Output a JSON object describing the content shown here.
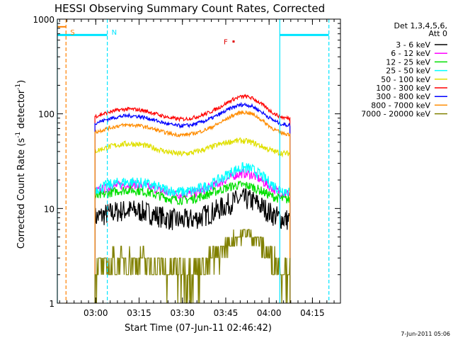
{
  "chart_data": {
    "type": "line",
    "title": "HESSI Observing Summary Count Rates, Corrected",
    "xlabel": "Start Time (07-Jun-11 02:46:42)",
    "ylabel_parts": [
      "Corrected Count Rate (s",
      "-1",
      " detector",
      "-1",
      ")"
    ],
    "yscale": "log",
    "ylim": [
      1,
      1000
    ],
    "xlim_minutes": [
      0,
      98
    ],
    "x_tick_labels": [
      "03:00",
      "03:15",
      "03:30",
      "03:45",
      "04:00",
      "04:15"
    ],
    "x_tick_minutes": [
      13.3,
      28.3,
      43.3,
      58.3,
      73.3,
      88.3
    ],
    "y_tick_labels": [
      "1",
      "10",
      "100",
      "1000"
    ],
    "y_tick_values": [
      1,
      10,
      100,
      1000
    ],
    "legend_header": [
      "Det 1,3,4,5,6,",
      "Att 0"
    ],
    "series": [
      {
        "name": "3 - 6 keV",
        "color": "#000000",
        "base": 8.5,
        "peak": 1.35,
        "noise": 0.12
      },
      {
        "name": "6 - 12 keV",
        "color": "#ff00ff",
        "base": 16,
        "peak": 1.35,
        "noise": 0.05
      },
      {
        "name": "12 - 25 keV",
        "color": "#00e000",
        "base": 14,
        "peak": 1.15,
        "noise": 0.05
      },
      {
        "name": "25 - 50 keV",
        "color": "#00ffff",
        "base": 17,
        "peak": 1.45,
        "noise": 0.06
      },
      {
        "name": "50 - 100 keV",
        "color": "#e0e000",
        "base": 43,
        "peak": 1.1,
        "noise": 0.03
      },
      {
        "name": "100 - 300 keV",
        "color": "#ff0000",
        "base": 100,
        "peak": 1.4,
        "noise": 0.02
      },
      {
        "name": "300 - 800 keV",
        "color": "#0000ff",
        "base": 85,
        "peak": 1.35,
        "noise": 0.02
      },
      {
        "name": "800 - 7000 keV",
        "color": "#ff8c00",
        "base": 68,
        "peak": 1.4,
        "noise": 0.02
      },
      {
        "name": "7000 - 20000 keV",
        "color": "#808000",
        "base": 2.5,
        "peak": 2.0,
        "noise": 0.0
      }
    ],
    "data_window_minutes": [
      13,
      80.5
    ],
    "time_markers": [
      {
        "label": "S",
        "minute": 3,
        "color": "#ff8000",
        "style": "dashed"
      },
      {
        "label": "N",
        "minute": 17.3,
        "color": "#00e5ff",
        "style": "dashed"
      },
      {
        "label": "",
        "minute": 0,
        "color": "#00e5ff",
        "style": "solid"
      },
      {
        "label": "",
        "minute": 77,
        "color": "#00e5ff",
        "style": "solid"
      },
      {
        "label": "",
        "minute": 94,
        "color": "#00e5ff",
        "style": "dashed"
      }
    ],
    "flag_F": {
      "label": "F",
      "minute": 61,
      "value": 580,
      "color": "#e00000"
    },
    "night_bars": [
      {
        "from": 0,
        "to": 17.3,
        "value": 680,
        "color": "#00e5ff"
      },
      {
        "from": 77,
        "to": 94,
        "value": 680,
        "color": "#00e5ff"
      }
    ],
    "s_bar": {
      "from": 0,
      "to": 3,
      "value": 830,
      "color": "#ff8000"
    },
    "footer": "7-Jun-2011 05:06"
  }
}
